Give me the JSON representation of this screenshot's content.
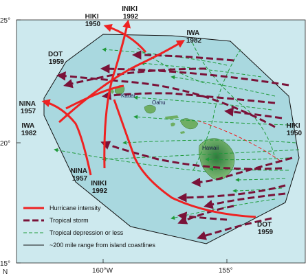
{
  "axes": {
    "lat_labels": [
      "25°",
      "20°",
      "15°"
    ],
    "lon_labels": [
      "160°W",
      "155°"
    ],
    "corner_label": "N"
  },
  "islands": {
    "kauai": "Kauai",
    "oahu": "Oahu",
    "hawaii": "Hawaii"
  },
  "storm_labels": {
    "hiki_nw": [
      "HIKI",
      "1950"
    ],
    "iniki_n": [
      "INIKI",
      "1992"
    ],
    "iwa_ne": [
      "IWA",
      "1982"
    ],
    "dot_nw": [
      "DOT",
      "1959"
    ],
    "nina_w": [
      "NINA",
      "1957"
    ],
    "iwa_w": [
      "IWA",
      "1982"
    ],
    "hiki_e": [
      "HIKI",
      "1950"
    ],
    "nina_s": [
      "NINA",
      "1957"
    ],
    "iniki_s": [
      "INIKI",
      "1992"
    ],
    "dot_se": [
      "DOT",
      "1959"
    ]
  },
  "legend": {
    "hurricane": "Hurricane intensity",
    "storm": "Tropical storm",
    "depression": "Tropical depression or less",
    "range": "~200 mile range from island coastlines"
  },
  "colors": {
    "sea": "#cde9ee",
    "range_fill": "#a9d8df",
    "hurricane": "#ee2222",
    "storm": "#7a1238",
    "depression": "#1f9a3a",
    "land": "#6fae63"
  }
}
